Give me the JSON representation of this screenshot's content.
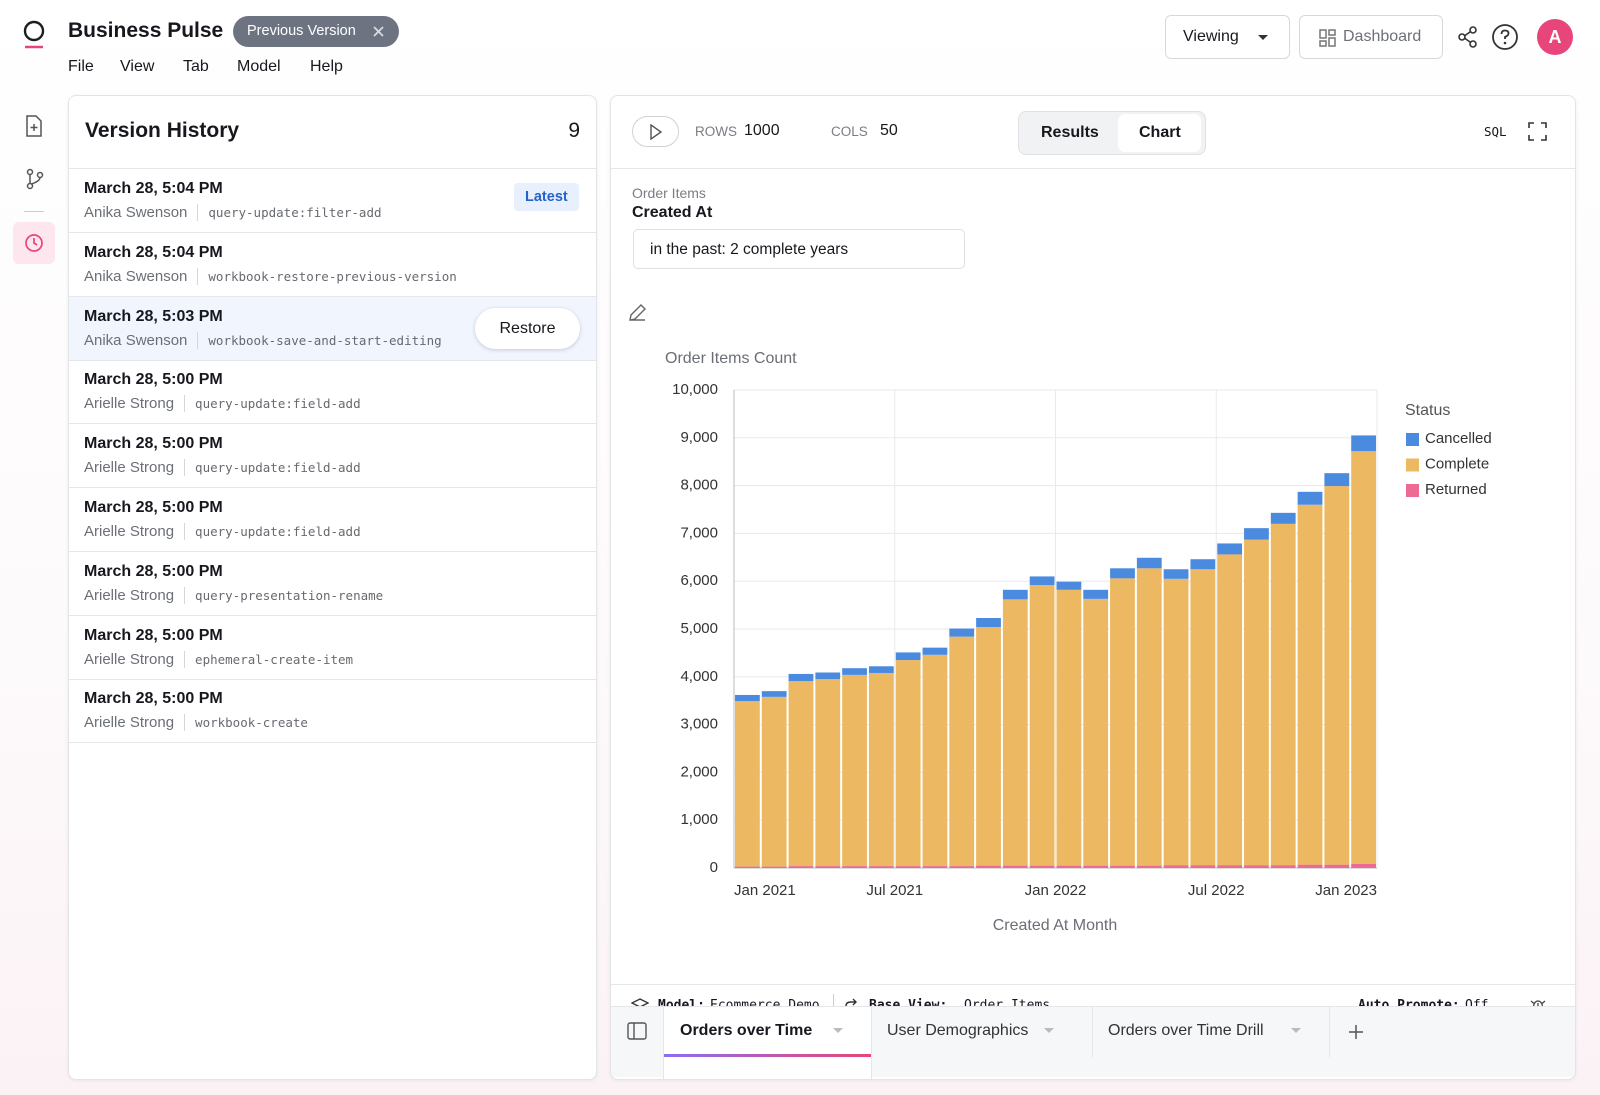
{
  "app": {
    "title": "Business Pulse",
    "badge": "Previous Version",
    "menu": [
      "File",
      "View",
      "Tab",
      "Model",
      "Help"
    ],
    "viewing": "Viewing",
    "dashboard": "Dashboard",
    "avatar": "A"
  },
  "version_history": {
    "title": "Version History",
    "count": 9,
    "latest_label": "Latest",
    "restore_label": "Restore",
    "items": [
      {
        "date": "March 28, 5:04 PM",
        "author": "Anika Swenson",
        "action": "query-update:filter-add"
      },
      {
        "date": "March 28, 5:04 PM",
        "author": "Anika Swenson",
        "action": "workbook-restore-previous-version"
      },
      {
        "date": "March 28, 5:03 PM",
        "author": "Anika Swenson",
        "action": "workbook-save-and-start-editing"
      },
      {
        "date": "March 28, 5:00 PM",
        "author": "Arielle Strong",
        "action": "query-update:field-add"
      },
      {
        "date": "March 28, 5:00 PM",
        "author": "Arielle Strong",
        "action": "query-update:field-add"
      },
      {
        "date": "March 28, 5:00 PM",
        "author": "Arielle Strong",
        "action": "query-update:field-add"
      },
      {
        "date": "March 28, 5:00 PM",
        "author": "Arielle Strong",
        "action": "query-presentation-rename"
      },
      {
        "date": "March 28, 5:00 PM",
        "author": "Arielle Strong",
        "action": "ephemeral-create-item"
      },
      {
        "date": "March 28, 5:00 PM",
        "author": "Arielle Strong",
        "action": "workbook-create"
      }
    ]
  },
  "query": {
    "rows_label": "ROWS",
    "rows": 1000,
    "cols_label": "COLS",
    "cols": 50,
    "views": [
      "Results",
      "Chart"
    ],
    "sql": "SQL",
    "filter": {
      "source": "Order Items",
      "field": "Created At",
      "value": "in the past: 2 complete years"
    }
  },
  "chart_data": {
    "type": "stacked_bar",
    "y_label": "Order Items Count",
    "x_label": "Created At Month",
    "legend_title": "Status",
    "legend": "right",
    "grid": true,
    "x": [
      "2021-01",
      "2021-02",
      "2021-03",
      "2021-04",
      "2021-05",
      "2021-06",
      "2021-07",
      "2021-08",
      "2021-09",
      "2021-10",
      "2021-11",
      "2021-12",
      "2022-01",
      "2022-02",
      "2022-03",
      "2022-04",
      "2022-05",
      "2022-06",
      "2022-07",
      "2022-08",
      "2022-09",
      "2022-10",
      "2022-11",
      "2022-12"
    ],
    "xlim": [
      "2021-01",
      "2023-01"
    ],
    "xticks": [
      {
        "value": "2021-01",
        "label": "Jan 2021"
      },
      {
        "value": "2021-07",
        "label": "Jul 2021"
      },
      {
        "value": "2022-01",
        "label": "Jan 2022"
      },
      {
        "value": "2022-07",
        "label": "Jul 2022"
      },
      {
        "value": "2023-01",
        "label": "Jan 2023"
      }
    ],
    "ylim": [
      0,
      10000
    ],
    "yticks": [
      0,
      {
        "value": 1000,
        "label": "1,000"
      },
      {
        "value": 2000,
        "label": "2,000"
      },
      {
        "value": 3000,
        "label": "3,000"
      },
      {
        "value": 4000,
        "label": "4,000"
      },
      {
        "value": 5000,
        "label": "5,000"
      },
      {
        "value": 6000,
        "label": "6,000"
      },
      {
        "value": 7000,
        "label": "7,000"
      },
      {
        "value": 8000,
        "label": "8,000"
      },
      {
        "value": 9000,
        "label": "9,000"
      },
      {
        "value": 10000,
        "label": "10,000"
      }
    ],
    "series": [
      {
        "name": "Cancelled",
        "color": "#4a8be0",
        "values": [
          130,
          120,
          150,
          140,
          140,
          140,
          160,
          150,
          170,
          190,
          200,
          180,
          170,
          190,
          210,
          220,
          200,
          210,
          230,
          240,
          230,
          270,
          270,
          330
        ]
      },
      {
        "name": "Complete",
        "color": "#ecb862",
        "values": [
          3460,
          3550,
          3870,
          3910,
          4000,
          4040,
          4310,
          4420,
          4800,
          4990,
          5570,
          5870,
          5770,
          5580,
          6010,
          6220,
          5990,
          6190,
          6500,
          6810,
          7140,
          7530,
          7920,
          8630
        ]
      },
      {
        "name": "Returned",
        "color": "#ec6a93",
        "values": [
          30,
          30,
          40,
          40,
          40,
          40,
          40,
          40,
          40,
          50,
          50,
          50,
          50,
          50,
          50,
          50,
          60,
          60,
          60,
          60,
          60,
          70,
          70,
          90
        ]
      }
    ]
  },
  "footer": {
    "model_label": "Model:",
    "model": "Ecommerce Demo",
    "base_view_label": "Base View:",
    "base_view": "Order Items",
    "auto_promote_label": "Auto Promote:",
    "auto_promote": "Off"
  },
  "tabs": [
    "Orders over Time",
    "User Demographics",
    "Orders over Time Drill"
  ]
}
